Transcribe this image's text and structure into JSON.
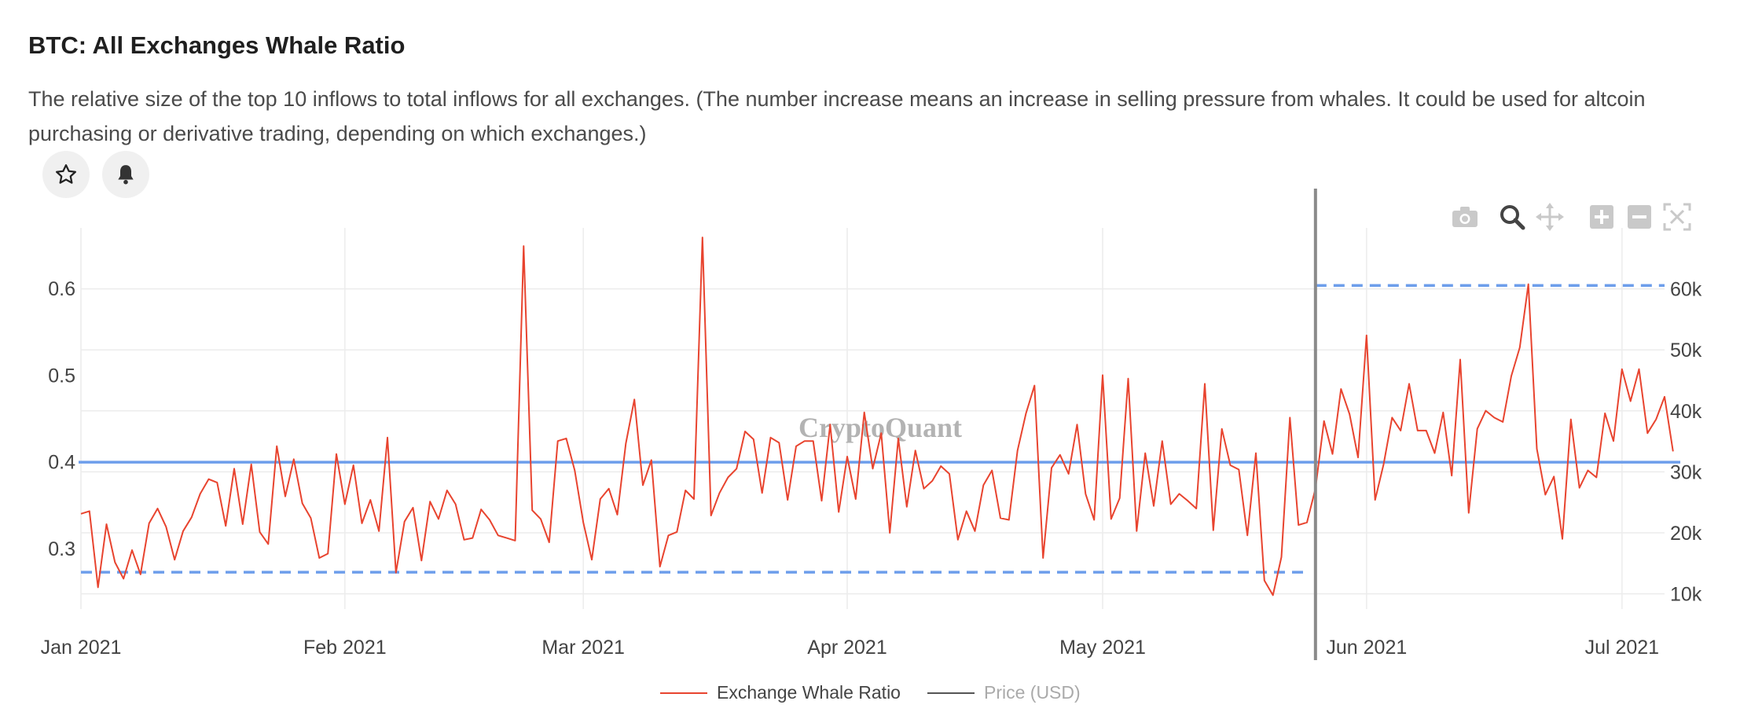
{
  "header": {
    "title": "BTC: All Exchanges Whale Ratio",
    "description": "The relative size of the top 10 inflows to total inflows for all exchanges. (The number increase means an increase in selling pressure from whales. It could be used for altcoin purchasing or derivative trading, depending on which exchanges.)"
  },
  "actions": {
    "favorite_icon": "star-icon",
    "alert_icon": "bell-icon"
  },
  "toolbar": [
    "camera-icon",
    "zoom-icon",
    "pan-icon",
    "zoom-in-icon",
    "zoom-out-icon",
    "autoscale-icon"
  ],
  "watermark": "CryptoQuant",
  "colors": {
    "series": "#e8442f",
    "price": "#555555",
    "annotation": "#6d9eeb",
    "hover_line": "#8a8a8a"
  },
  "legend": {
    "series_label": "Exchange Whale Ratio",
    "price_label": "Price (USD)"
  },
  "chart_data": {
    "type": "line",
    "x_start": "2021-01-01",
    "x_end": "2021-07-06",
    "xticks": [
      {
        "label": "Jan 2021",
        "date": "2021-01-01"
      },
      {
        "label": "Feb 2021",
        "date": "2021-02-01"
      },
      {
        "label": "Mar 2021",
        "date": "2021-03-01"
      },
      {
        "label": "Apr 2021",
        "date": "2021-04-01"
      },
      {
        "label": "May 2021",
        "date": "2021-05-01"
      },
      {
        "label": "Jun 2021",
        "date": "2021-06-01"
      },
      {
        "label": "Jul 2021",
        "date": "2021-07-01"
      }
    ],
    "ylim": [
      0.23,
      0.67
    ],
    "yticks": [
      {
        "label": "0.3",
        "value": 0.3
      },
      {
        "label": "0.4",
        "value": 0.4
      },
      {
        "label": "0.5",
        "value": 0.5
      },
      {
        "label": "0.6",
        "value": 0.6
      }
    ],
    "y2lim": [
      7500,
      70000
    ],
    "y2ticks": [
      {
        "label": "10k",
        "value": 10000
      },
      {
        "label": "20k",
        "value": 20000
      },
      {
        "label": "30k",
        "value": 30000
      },
      {
        "label": "40k",
        "value": 40000
      },
      {
        "label": "50k",
        "value": 50000
      },
      {
        "label": "60k",
        "value": 60000
      }
    ],
    "grid": true,
    "legend_position": "bottom-center",
    "series": [
      {
        "name": "Exchange Whale Ratio",
        "color": "#e8442f",
        "values": [
          0.34,
          0.343,
          0.255,
          0.328,
          0.284,
          0.265,
          0.298,
          0.27,
          0.329,
          0.346,
          0.325,
          0.287,
          0.32,
          0.336,
          0.363,
          0.38,
          0.376,
          0.326,
          0.392,
          0.328,
          0.397,
          0.319,
          0.305,
          0.418,
          0.36,
          0.403,
          0.352,
          0.335,
          0.289,
          0.294,
          0.409,
          0.351,
          0.396,
          0.329,
          0.356,
          0.32,
          0.428,
          0.272,
          0.331,
          0.347,
          0.286,
          0.354,
          0.334,
          0.367,
          0.351,
          0.31,
          0.312,
          0.345,
          0.333,
          0.315,
          0.312,
          0.309,
          0.649,
          0.344,
          0.334,
          0.307,
          0.424,
          0.427,
          0.39,
          0.33,
          0.287,
          0.357,
          0.369,
          0.339,
          0.421,
          0.472,
          0.373,
          0.402,
          0.279,
          0.315,
          0.319,
          0.367,
          0.357,
          0.659,
          0.338,
          0.364,
          0.382,
          0.392,
          0.435,
          0.426,
          0.364,
          0.428,
          0.422,
          0.356,
          0.418,
          0.424,
          0.424,
          0.355,
          0.443,
          0.342,
          0.406,
          0.357,
          0.457,
          0.392,
          0.433,
          0.318,
          0.427,
          0.348,
          0.413,
          0.369,
          0.378,
          0.395,
          0.386,
          0.31,
          0.343,
          0.32,
          0.373,
          0.39,
          0.335,
          0.333,
          0.413,
          0.456,
          0.488,
          0.289,
          0.393,
          0.408,
          0.386,
          0.443,
          0.363,
          0.333,
          0.5,
          0.334,
          0.358,
          0.496,
          0.32,
          0.41,
          0.349,
          0.424,
          0.351,
          0.363,
          0.355,
          0.346,
          0.49,
          0.321,
          0.438,
          0.396,
          0.391,
          0.315,
          0.41,
          0.263,
          0.246,
          0.29,
          0.451,
          0.327,
          0.33,
          0.369,
          0.447,
          0.409,
          0.484,
          0.455,
          0.405,
          0.546,
          0.356,
          0.397,
          0.451,
          0.436,
          0.49,
          0.436,
          0.436,
          0.41,
          0.457,
          0.384,
          0.518,
          0.341,
          0.438,
          0.459,
          0.451,
          0.446,
          0.499,
          0.532,
          0.605,
          0.415,
          0.362,
          0.383,
          0.311,
          0.449,
          0.37,
          0.39,
          0.382,
          0.456,
          0.424,
          0.507,
          0.47,
          0.507,
          0.433,
          0.449,
          0.475,
          0.412
        ]
      }
    ],
    "hline_solid": {
      "value": 0.3995,
      "color": "#6d9eeb"
    },
    "hline_dashed_low": {
      "value": 0.2725,
      "x_from": "2021-01-01",
      "x_to": "2021-05-25",
      "color": "#6d9eeb"
    },
    "hline_dashed_high": {
      "value": 0.6035,
      "x_from": "2021-05-26",
      "x_to": "2021-07-06",
      "color": "#6d9eeb"
    },
    "vline": {
      "date": "2021-05-26",
      "color": "#8a8a8a"
    }
  }
}
